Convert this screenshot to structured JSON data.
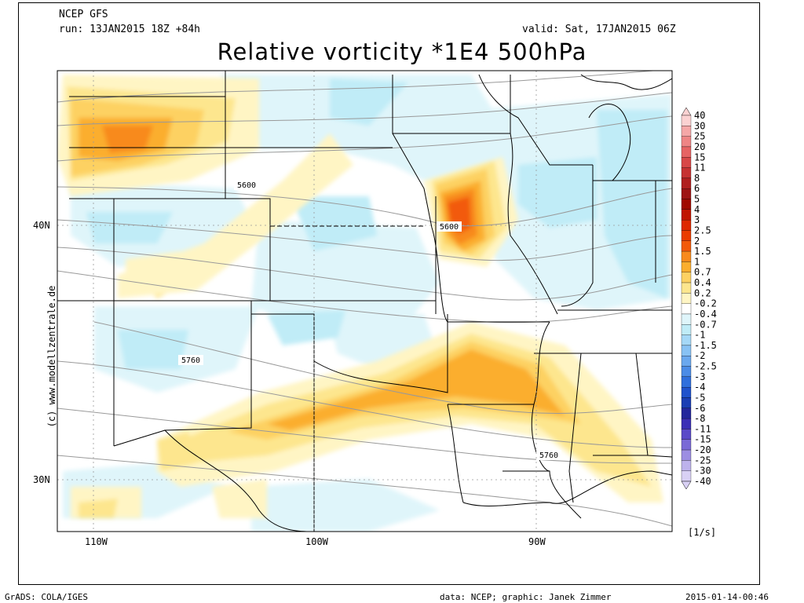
{
  "header": {
    "model": "NCEP GFS",
    "run": "run: 13JAN2015 18Z +84h",
    "valid": "valid: Sat, 17JAN2015 06Z",
    "title": "Relative vorticity *1E4 500hPa"
  },
  "side_credit": "(c) www.modellzentrale.de",
  "footer": {
    "left": "GrADS: COLA/IGES",
    "center": "data: NCEP; graphic: Janek Zimmer",
    "right": "2015-01-14-00:46"
  },
  "axes": {
    "lon_labels": [
      "110W",
      "100W",
      "90W"
    ],
    "lat_labels": [
      "40N",
      "30N"
    ]
  },
  "contour_labels": [
    "5600",
    "5600",
    "5760",
    "5760"
  ],
  "colorbar": {
    "unit": "[1/s]",
    "levels": [
      "40",
      "30",
      "25",
      "20",
      "15",
      "11",
      "8",
      "6",
      "5",
      "4",
      "3",
      "2.5",
      "2",
      "1.5",
      "1",
      "0.7",
      "0.4",
      "0.2",
      "-0.2",
      "-0.4",
      "-0.7",
      "-1",
      "-1.5",
      "-2",
      "-2.5",
      "-3",
      "-4",
      "-5",
      "-6",
      "-8",
      "-11",
      "-15",
      "-20",
      "-25",
      "-30",
      "-40"
    ],
    "colors": [
      "#fbd2d2",
      "#f5a7a7",
      "#ee8585",
      "#e66464",
      "#d84848",
      "#c63232",
      "#b01e1e",
      "#9e1414",
      "#a00a00",
      "#c01400",
      "#de2800",
      "#ea3c00",
      "#f25a0a",
      "#f88a1c",
      "#fbae2e",
      "#fdd162",
      "#fde68e",
      "#fff5c4",
      "#ffffff",
      "#dff5fa",
      "#c0ecf7",
      "#a5d8f7",
      "#88c2f4",
      "#6aa8ee",
      "#4b8ce6",
      "#2f6fdc",
      "#1f52cc",
      "#1a3eb4",
      "#23279c",
      "#3b2fb6",
      "#5a4ac8",
      "#7a6ad6",
      "#9c8ee2",
      "#bdb2ec",
      "#d8d0f4"
    ]
  }
}
